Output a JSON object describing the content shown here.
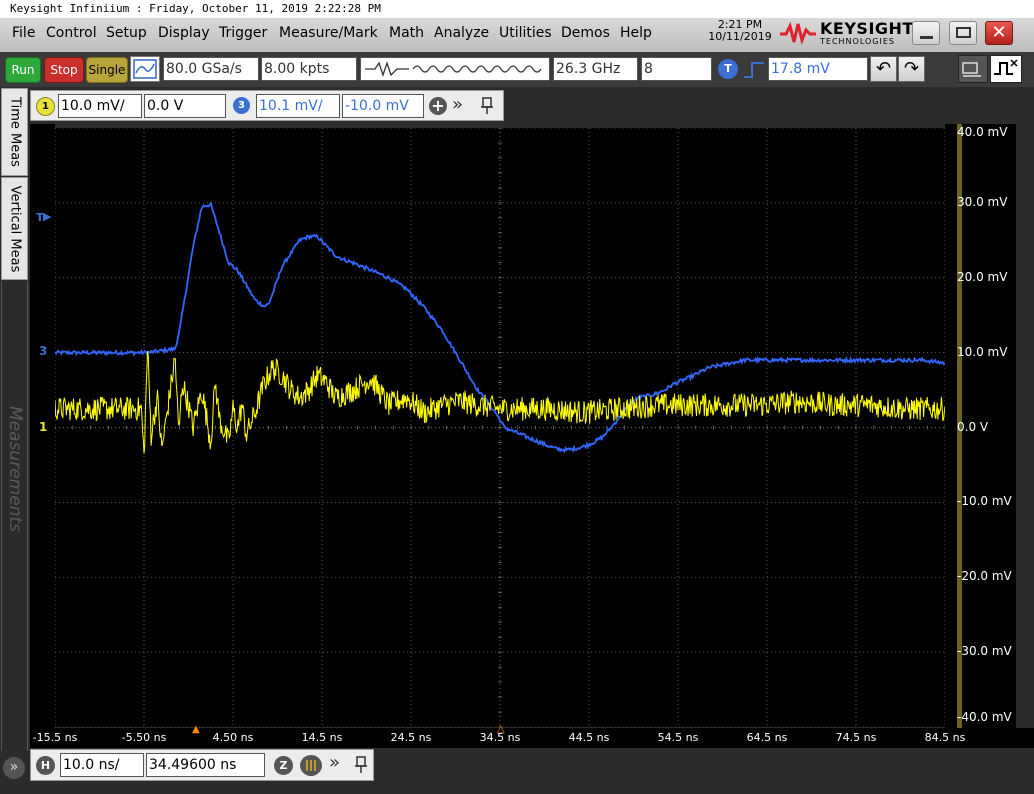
{
  "window": {
    "title": "Keysight Infiniium : Friday, October 11, 2019 2:22:28 PM"
  },
  "menu": [
    "File",
    "Control",
    "Setup",
    "Display",
    "Trigger",
    "Measure/Mark",
    "Math",
    "Analyze",
    "Utilities",
    "Demos",
    "Help"
  ],
  "clock": {
    "time": "2:21 PM",
    "date": "10/11/2019"
  },
  "brand": {
    "name": "KEYSIGHT",
    "sub": "TECHNOLOGIES"
  },
  "toolbar": {
    "run": "Run",
    "stop": "Stop",
    "single": "Single",
    "sample_rate": "80.0 GSa/s",
    "memory_depth": "8.00 kpts",
    "bandwidth": "26.3 GHz",
    "averages": "8",
    "trigger_badge": "T",
    "trigger_level": "17.8 mV"
  },
  "channels": {
    "ch1": {
      "badge": "1",
      "scale": "10.0 mV/",
      "offset": "0.0 V",
      "color": "#ffff00"
    },
    "ch3": {
      "badge": "3",
      "scale": "10.1 mV/",
      "offset": "-10.0 mV",
      "color": "#3366ff"
    }
  },
  "side_tabs": {
    "time_meas": "Time Meas",
    "vertical_meas": "Vertical Meas",
    "measurements": "Measurements"
  },
  "markers": {
    "trigger": "T",
    "ch1": "1",
    "ch3": "3"
  },
  "bottom": {
    "h_badge": "H",
    "h_scale": "10.0 ns/",
    "h_position": "34.49600 ns",
    "zoom_badge": "Z"
  },
  "colors": {
    "ch1": "#ffff00",
    "ch3": "#3366ff",
    "grid": "#707070",
    "screen": "#000000"
  },
  "chart_data": {
    "type": "line",
    "x_ticks": [
      "-15.5 ns",
      "-5.50 ns",
      "4.50 ns",
      "14.5 ns",
      "24.5 ns",
      "34.5 ns",
      "44.5 ns",
      "54.5 ns",
      "64.5 ns",
      "74.5 ns",
      "84.5 ns"
    ],
    "y_ticks": [
      "40.0 mV",
      "30.0 mV",
      "20.0 mV",
      "10.0 mV",
      "0.0 V",
      "-10.0 mV",
      "-20.0 mV",
      "-30.0 mV",
      "-40.0 mV"
    ],
    "xlim": [
      -15.5,
      84.5
    ],
    "ylim": [
      -40,
      40
    ],
    "grid": true,
    "series": [
      {
        "id": "ch3",
        "color": "#3366ff",
        "x": [
          -15.5,
          -10,
          -5,
          -2,
          -1.5,
          0,
          1,
          2,
          3,
          4,
          5,
          6,
          7,
          8,
          8.5,
          9,
          10,
          12,
          13,
          14,
          15,
          16,
          17,
          18,
          20,
          22,
          24,
          26,
          28,
          30,
          32,
          34,
          35,
          36,
          38,
          40,
          41,
          42,
          43,
          44,
          45,
          46,
          47,
          48,
          49,
          50,
          51,
          52,
          53,
          54,
          56,
          58,
          60,
          62,
          64,
          66,
          68,
          70,
          72,
          74,
          76,
          78,
          80,
          82,
          84.5
        ],
        "values": [
          10,
          10,
          10,
          10.5,
          13,
          24,
          29.5,
          29.8,
          26,
          22,
          21,
          19,
          17,
          16.2,
          16.5,
          18,
          21.5,
          25,
          25.5,
          25.5,
          24.2,
          23,
          22.4,
          22,
          21,
          20,
          18.5,
          16,
          13,
          9,
          5,
          2,
          0,
          -0.5,
          -1.5,
          -2.5,
          -2.9,
          -3,
          -2.8,
          -2.5,
          -2,
          -1.3,
          0,
          1.5,
          3,
          4,
          4.2,
          4.5,
          5,
          5.8,
          6.8,
          8,
          8.5,
          9,
          9,
          9,
          9,
          9,
          9,
          9,
          9,
          9,
          9,
          9,
          8.6
        ]
      },
      {
        "id": "ch1",
        "color": "#ffff00",
        "x": [
          -15.5,
          -10,
          -5.8,
          -5.5,
          -5.1,
          -4.7,
          -4,
          -3.5,
          -2,
          -1.6,
          -1.2,
          -0.5,
          0,
          1,
          2,
          2.5,
          3,
          4,
          4.5,
          5,
          5.5,
          6,
          7,
          8,
          9,
          10,
          11,
          12,
          13,
          14,
          15,
          16,
          18,
          20,
          22,
          24,
          26,
          28,
          30,
          32,
          34.5,
          36,
          40,
          44,
          48,
          52,
          56,
          60,
          64,
          68,
          72,
          76,
          80,
          84.5
        ],
        "values": [
          2.5,
          2.5,
          2.5,
          -4,
          10.5,
          -1,
          4,
          -3,
          9.5,
          -1,
          6,
          3,
          0,
          5,
          -2,
          6,
          1,
          -2,
          2.5,
          0,
          3,
          -1,
          2,
          6,
          8,
          7,
          5,
          4,
          5,
          7,
          6,
          4,
          5,
          6.5,
          3,
          4,
          2,
          3,
          3.5,
          3,
          2.5,
          2.5,
          2.5,
          2,
          2.5,
          3,
          3,
          3,
          3,
          3.5,
          3,
          3,
          2.5,
          2.5
        ]
      }
    ]
  }
}
